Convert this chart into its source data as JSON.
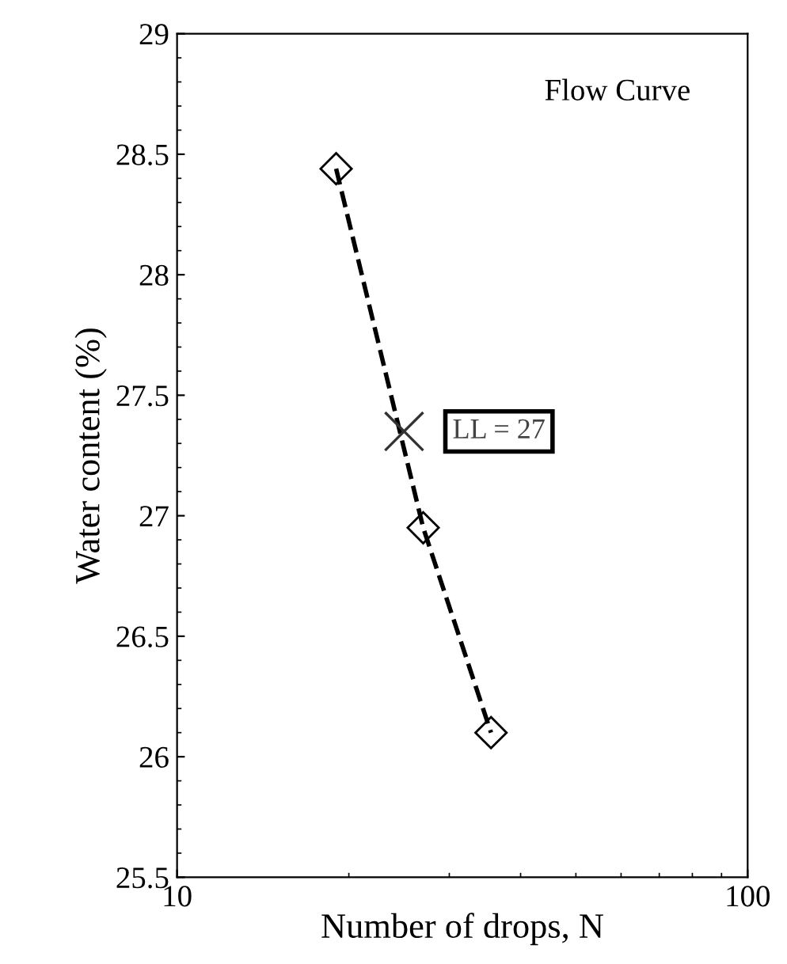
{
  "chart_data": {
    "type": "line",
    "title": "Flow Curve",
    "xlabel": "Number of drops, N",
    "ylabel": "Water content (%)",
    "log": "x",
    "xlim": [
      10,
      100
    ],
    "xticks": [
      10,
      100
    ],
    "ylim": [
      25.5,
      29
    ],
    "yticks": [
      25.5,
      26,
      26.5,
      27,
      27.5,
      28,
      28.5,
      29
    ],
    "grid": false,
    "legend": false,
    "series": [
      {
        "color": "#000000",
        "x": [
          19,
          27,
          35.5
        ],
        "values": [
          28.44,
          26.95,
          26.1
        ],
        "marker": "diamond",
        "line_style": "dashed"
      },
      {
        "type": "scatter",
        "color": "#333333",
        "x": [
          25
        ],
        "values": [
          27.35
        ],
        "marker": "cross"
      }
    ],
    "annotations": [
      {
        "text": "LL = 27",
        "x": 25,
        "y": 27.35
      }
    ]
  }
}
